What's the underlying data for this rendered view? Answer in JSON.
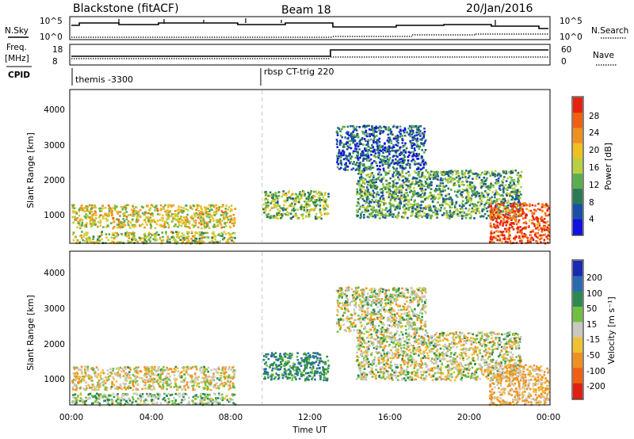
{
  "header": {
    "title": "Blackstone (fitACF)",
    "beam": "Beam 18",
    "date": "20/Jan/2016"
  },
  "summary_panel": {
    "left_top_label": "N.Sky",
    "right_top_label": "N.Search",
    "left_ticks": [
      "10^5",
      "10^0"
    ],
    "right_ticks": [
      "10^5",
      "10^0"
    ]
  },
  "freq_panel": {
    "left_label_1": "Freq.",
    "left_label_2": "[MHz]",
    "left_ticks": [
      "18",
      "8"
    ],
    "right_label": "Nave",
    "right_ticks": [
      "60",
      "0"
    ]
  },
  "cpid_panel": {
    "label": "CPID",
    "segments": [
      {
        "text": "themis -3300",
        "start_hour": 0
      },
      {
        "text": "rbsp CT-trig 220",
        "start_hour": 9.6
      }
    ]
  },
  "x_axis": {
    "label": "Time UT",
    "ticks": [
      "00:00",
      "04:00",
      "08:00",
      "12:00",
      "16:00",
      "20:00",
      "00:00"
    ]
  },
  "power_panel": {
    "ylabel": "Slant Range [km]",
    "yticks": [
      "1000",
      "2000",
      "3000",
      "4000"
    ],
    "colorbar_label": "Power [dB]",
    "colorbar_ticks": [
      "4",
      "8",
      "12",
      "16",
      "20",
      "24",
      "28"
    ],
    "colors": [
      "#1010e0",
      "#1a4ea8",
      "#2a7a55",
      "#5aae50",
      "#b8d040",
      "#f0c020",
      "#f09020",
      "#f06010",
      "#e82010"
    ]
  },
  "velocity_panel": {
    "ylabel": "Slant Range [km]",
    "yticks": [
      "1000",
      "2000",
      "3000",
      "4000"
    ],
    "colorbar_label": "Velocity [m s⁻¹]",
    "colorbar_ticks": [
      "200",
      "100",
      "50",
      "15",
      "-15",
      "-50",
      "-100",
      "-200"
    ],
    "colors": [
      "#1a2ab0",
      "#2a6ab0",
      "#2a8a50",
      "#70c040",
      "#c8c8c0",
      "#f0c030",
      "#f09020",
      "#f06010",
      "#e02010"
    ]
  },
  "chart_data": {
    "type": "heatmap",
    "x_range_hours": [
      0,
      24
    ],
    "y_range_km": [
      180,
      4600
    ],
    "cpid_change_hour": 9.6,
    "scatter_regions": [
      {
        "hours": [
          0,
          8.2
        ],
        "km": [
          620,
          1300
        ],
        "power_db": 16,
        "velocity_ms": -10
      },
      {
        "hours": [
          0,
          8.2
        ],
        "km": [
          180,
          520
        ],
        "power_db": 14,
        "velocity_ms": 20
      },
      {
        "hours": [
          9.6,
          12.9
        ],
        "km": [
          900,
          1700
        ],
        "power_db": 12,
        "velocity_ms": 60
      },
      {
        "hours": [
          14.3,
          22.6
        ],
        "km": [
          900,
          2300
        ],
        "power_db": 10,
        "velocity_ms": 0
      },
      {
        "hours": [
          21.0,
          24
        ],
        "km": [
          180,
          1350
        ],
        "power_db": 24,
        "velocity_ms": -30
      },
      {
        "hours": [
          13.3,
          17.8
        ],
        "km": [
          2300,
          3600
        ],
        "power_db": 6,
        "velocity_ms": 0
      }
    ]
  }
}
